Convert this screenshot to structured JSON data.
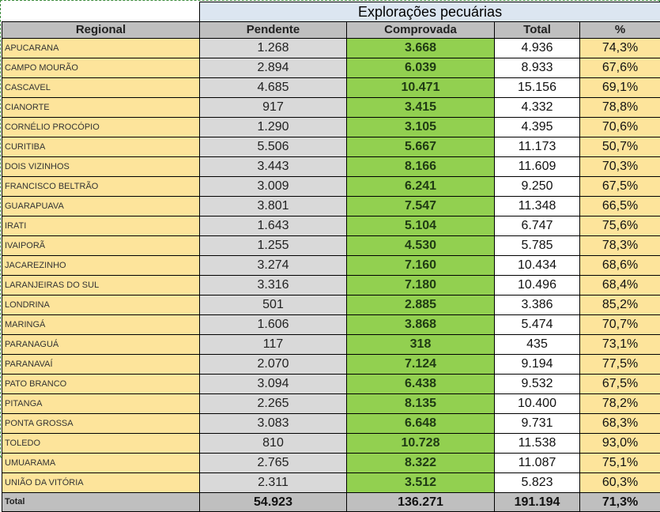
{
  "table": {
    "group_header": "Explorações pecuárias",
    "columns": [
      "Regional",
      "Pendente",
      "Comprovada",
      "Total",
      "%"
    ],
    "rows": [
      [
        "APUCARANA",
        "1.268",
        "3.668",
        "4.936",
        "74,3%"
      ],
      [
        "CAMPO MOURÃO",
        "2.894",
        "6.039",
        "8.933",
        "67,6%"
      ],
      [
        "CASCAVEL",
        "4.685",
        "10.471",
        "15.156",
        "69,1%"
      ],
      [
        "CIANORTE",
        "917",
        "3.415",
        "4.332",
        "78,8%"
      ],
      [
        "CORNÉLIO PROCÓPIO",
        "1.290",
        "3.105",
        "4.395",
        "70,6%"
      ],
      [
        "CURITIBA",
        "5.506",
        "5.667",
        "11.173",
        "50,7%"
      ],
      [
        "DOIS VIZINHOS",
        "3.443",
        "8.166",
        "11.609",
        "70,3%"
      ],
      [
        "FRANCISCO BELTRÃO",
        "3.009",
        "6.241",
        "9.250",
        "67,5%"
      ],
      [
        "GUARAPUAVA",
        "3.801",
        "7.547",
        "11.348",
        "66,5%"
      ],
      [
        "IRATI",
        "1.643",
        "5.104",
        "6.747",
        "75,6%"
      ],
      [
        "IVAIPORÃ",
        "1.255",
        "4.530",
        "5.785",
        "78,3%"
      ],
      [
        "JACAREZINHO",
        "3.274",
        "7.160",
        "10.434",
        "68,6%"
      ],
      [
        "LARANJEIRAS DO SUL",
        "3.316",
        "7.180",
        "10.496",
        "68,4%"
      ],
      [
        "LONDRINA",
        "501",
        "2.885",
        "3.386",
        "85,2%"
      ],
      [
        "MARINGÁ",
        "1.606",
        "3.868",
        "5.474",
        "70,7%"
      ],
      [
        "PARANAGUÁ",
        "117",
        "318",
        "435",
        "73,1%"
      ],
      [
        "PARANAVAÍ",
        "2.070",
        "7.124",
        "9.194",
        "77,5%"
      ],
      [
        "PATO BRANCO",
        "3.094",
        "6.438",
        "9.532",
        "67,5%"
      ],
      [
        "PITANGA",
        "2.265",
        "8.135",
        "10.400",
        "78,2%"
      ],
      [
        "PONTA GROSSA",
        "3.083",
        "6.648",
        "9.731",
        "68,3%"
      ],
      [
        "TOLEDO",
        "810",
        "10.728",
        "11.538",
        "93,0%"
      ],
      [
        "UMUARAMA",
        "2.765",
        "8.322",
        "11.087",
        "75,1%"
      ],
      [
        "UNIÃO DA VITÓRIA",
        "2.311",
        "3.512",
        "5.823",
        "60,3%"
      ]
    ],
    "footer": [
      "Total",
      "54.923",
      "136.271",
      "191.194",
      "71,3%"
    ]
  },
  "colors": {
    "regional_bg": "#fde49b",
    "pendente_bg": "#d9d9d9",
    "comprovada_bg": "#92d050",
    "total_bg": "#ffffff",
    "pct_bg": "#fde49b",
    "header_bg": "#bfbfbf",
    "group_header_bg": "#dce6f1"
  }
}
